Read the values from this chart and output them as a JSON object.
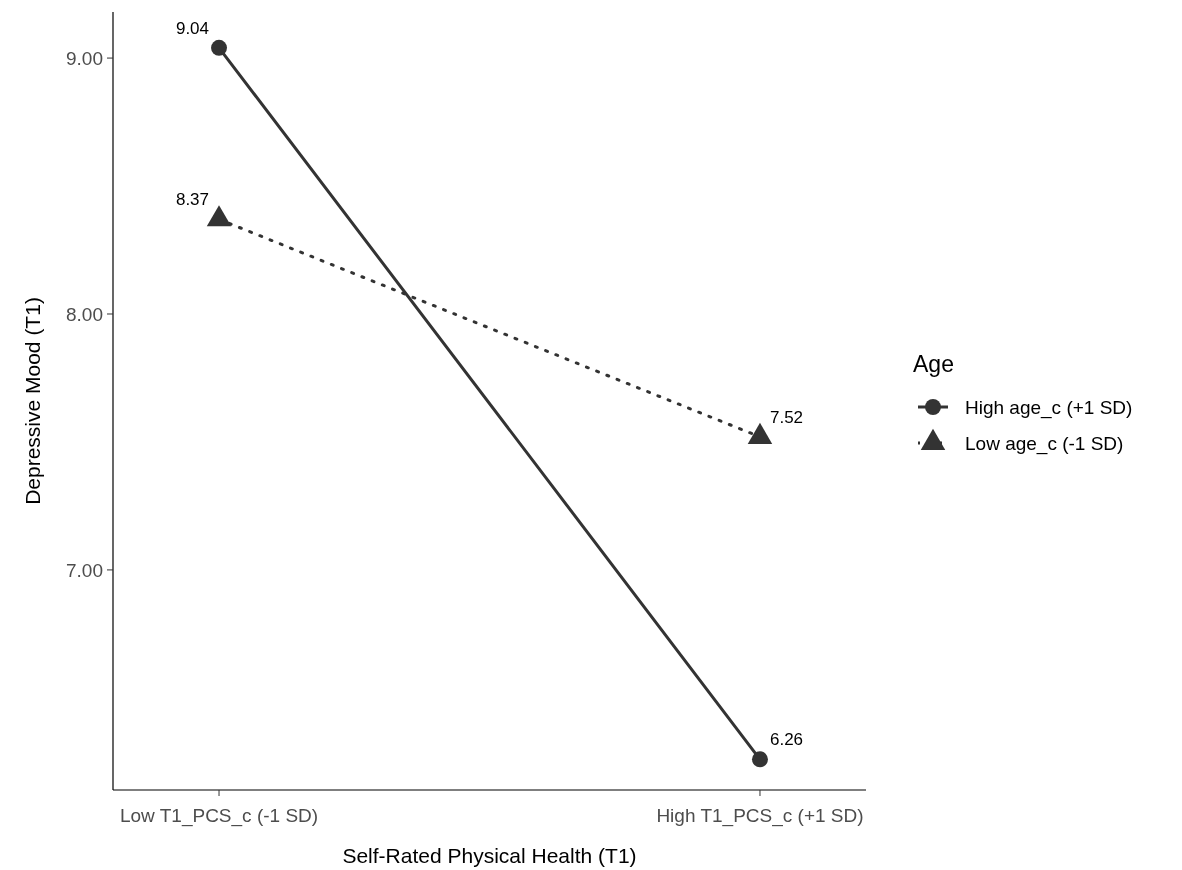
{
  "chart_data": {
    "type": "line",
    "xlabel": "Self-Rated Physical Health (T1)",
    "ylabel": "Depressive Mood (T1)",
    "legend_title": "Age",
    "categories": [
      "Low T1_PCS_c (-1 SD)",
      "High T1_PCS_c (+1 SD)"
    ],
    "series": [
      {
        "name": "High age_c (+1 SD)",
        "color": "#333333",
        "values": [
          9.04,
          6.26
        ],
        "marker": "circle",
        "line_style": "solid"
      },
      {
        "name": "Low age_c (-1 SD)",
        "color": "#333333",
        "values": [
          8.37,
          7.52
        ],
        "marker": "triangle",
        "line_style": "dotted"
      }
    ],
    "ylim": [
      6.14,
      9.18
    ],
    "yticks": [
      {
        "value": 7,
        "label": "7.00"
      },
      {
        "value": 8,
        "label": "8.00"
      },
      {
        "value": 9,
        "label": "9.00"
      }
    ],
    "grid": false,
    "legend": "right",
    "data_labels": true
  }
}
